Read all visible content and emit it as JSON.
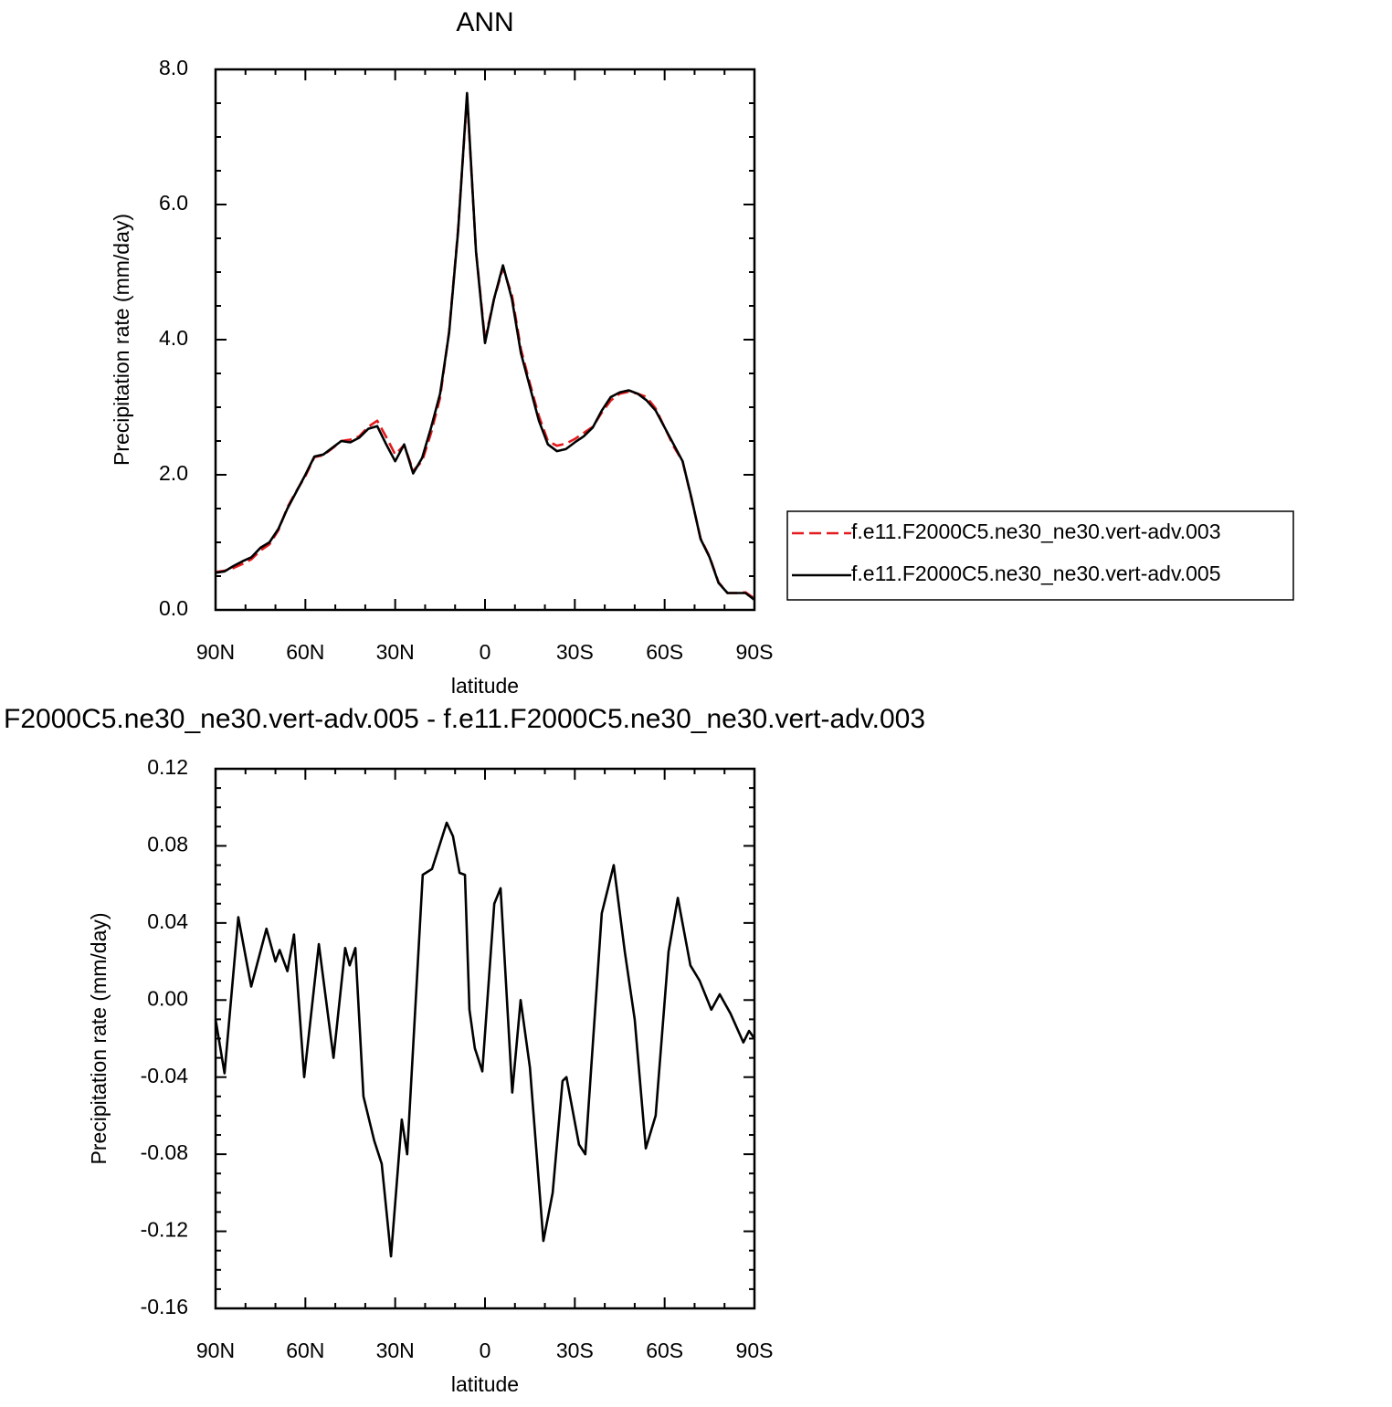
{
  "chart_data": [
    {
      "type": "line",
      "title": "ANN",
      "x_label": "latitude",
      "y_label": "Precipitation rate (mm/day)",
      "xlim": [
        90,
        -90
      ],
      "xticks": [
        {
          "value": 90,
          "label": "90N"
        },
        {
          "value": 60,
          "label": "60N"
        },
        {
          "value": 30,
          "label": "30N"
        },
        0,
        {
          "value": -30,
          "label": "30S"
        },
        {
          "value": -60,
          "label": "60S"
        },
        {
          "value": -90,
          "label": "90S"
        }
      ],
      "ylim": [
        0,
        8
      ],
      "yticks": [
        {
          "value": 0,
          "label": "0.0"
        },
        {
          "value": 2,
          "label": "2.0"
        },
        {
          "value": 4,
          "label": "4.0"
        },
        {
          "value": 6,
          "label": "6.0"
        },
        {
          "value": 8,
          "label": "8.0"
        }
      ],
      "legend": "right",
      "x": [
        90,
        87,
        84,
        81,
        78,
        75,
        72,
        69,
        66,
        63,
        60,
        57,
        54,
        51,
        48,
        45,
        42,
        39,
        36,
        33,
        30,
        27,
        24,
        21,
        18,
        15,
        12,
        9,
        6,
        3,
        0,
        -3,
        -6,
        -9,
        -12,
        -15,
        -18,
        -21,
        -24,
        -27,
        -30,
        -33,
        -36,
        -39,
        -42,
        -45,
        -48,
        -51,
        -54,
        -57,
        -60,
        -63,
        -66,
        -69,
        -72,
        -75,
        -78,
        -81,
        -84,
        -87,
        -90
      ],
      "series": [
        {
          "name": "f.e11.F2000C5.ne30_ne30.vert-adv.003",
          "color": "#e41a1c",
          "dash": true,
          "values": [
            0.56,
            0.58,
            0.62,
            0.68,
            0.75,
            0.88,
            0.97,
            1.18,
            1.52,
            1.76,
            1.98,
            2.26,
            2.29,
            2.39,
            2.5,
            2.52,
            2.57,
            2.71,
            2.8,
            2.56,
            2.3,
            2.44,
            2.06,
            2.2,
            2.62,
            3.14,
            4.12,
            5.63,
            7.6,
            5.3,
            4.0,
            4.6,
            5.06,
            4.66,
            3.86,
            3.35,
            2.87,
            2.5,
            2.43,
            2.46,
            2.53,
            2.62,
            2.71,
            2.92,
            3.1,
            3.2,
            3.23,
            3.2,
            3.15,
            2.98,
            2.7,
            2.42,
            2.2,
            1.64,
            1.06,
            0.79,
            0.41,
            0.25,
            0.25,
            0.26,
            0.17
          ]
        },
        {
          "name": "f.e11.F2000C5.ne30_ne30.vert-adv.005",
          "color": "#000000",
          "values": [
            0.55,
            0.57,
            0.65,
            0.72,
            0.78,
            0.92,
            1.0,
            1.2,
            1.5,
            1.75,
            2.0,
            2.27,
            2.3,
            2.4,
            2.5,
            2.48,
            2.55,
            2.68,
            2.72,
            2.45,
            2.2,
            2.45,
            2.02,
            2.25,
            2.7,
            3.2,
            4.1,
            5.6,
            7.65,
            5.3,
            3.95,
            4.6,
            5.1,
            4.6,
            3.8,
            3.3,
            2.8,
            2.45,
            2.35,
            2.38,
            2.48,
            2.57,
            2.7,
            2.95,
            3.15,
            3.22,
            3.25,
            3.2,
            3.1,
            2.95,
            2.7,
            2.45,
            2.2,
            1.65,
            1.05,
            0.78,
            0.4,
            0.25,
            0.25,
            0.25,
            0.15
          ]
        }
      ]
    },
    {
      "type": "line",
      "title": "F2000C5.ne30_ne30.vert-adv.005 - f.e11.F2000C5.ne30_ne30.vert-adv.003",
      "x_label": "latitude",
      "y_label": "Precipitation rate (mm/day)",
      "xlim": [
        90,
        -90
      ],
      "xticks": [
        {
          "value": 90,
          "label": "90N"
        },
        {
          "value": 60,
          "label": "60N"
        },
        {
          "value": 30,
          "label": "30N"
        },
        0,
        {
          "value": -30,
          "label": "30S"
        },
        {
          "value": -60,
          "label": "60S"
        },
        {
          "value": -90,
          "label": "90S"
        }
      ],
      "ylim": [
        -0.16,
        0.12
      ],
      "yticks": [
        -0.16,
        -0.12,
        -0.08,
        -0.04,
        {
          "value": 0,
          "label": "0.00"
        },
        0.04,
        0.08,
        0.12
      ],
      "color": "#000000",
      "x": [
        90,
        87,
        82.4,
        78.1,
        73,
        70,
        68.6,
        66,
        63.8,
        60.4,
        55.5,
        50.6,
        46.7,
        45.2,
        43.3,
        40.6,
        37,
        34.5,
        31.4,
        27.8,
        26,
        20.8,
        17.7,
        12.8,
        10.7,
        8.5,
        6.7,
        5.2,
        3.4,
        0.9,
        -3.1,
        -5.2,
        -9.1,
        -11.9,
        -15,
        -19.5,
        -22.6,
        -25.9,
        -27.2,
        -31.4,
        -33.5,
        -39,
        -43,
        -46.7,
        -50,
        -53.7,
        -57,
        -61.3,
        -64.4,
        -68.6,
        -71.7,
        -75.6,
        -78.4,
        -82,
        -86.3,
        -88.2,
        -90
      ],
      "values": [
        -0.01,
        -0.038,
        0.043,
        0.007,
        0.037,
        0.02,
        0.026,
        0.015,
        0.034,
        -0.04,
        0.029,
        -0.03,
        0.027,
        0.018,
        0.027,
        -0.05,
        -0.073,
        -0.085,
        -0.133,
        -0.062,
        -0.08,
        0.065,
        0.068,
        0.092,
        0.085,
        0.066,
        0.065,
        -0.005,
        -0.025,
        -0.037,
        0.05,
        0.058,
        -0.048,
        0.0,
        -0.035,
        -0.125,
        -0.1,
        -0.042,
        -0.04,
        -0.075,
        -0.08,
        0.045,
        0.07,
        0.025,
        -0.01,
        -0.077,
        -0.06,
        0.025,
        0.053,
        0.018,
        0.01,
        -0.005,
        0.003,
        -0.007,
        -0.022,
        -0.016,
        -0.02
      ]
    }
  ]
}
